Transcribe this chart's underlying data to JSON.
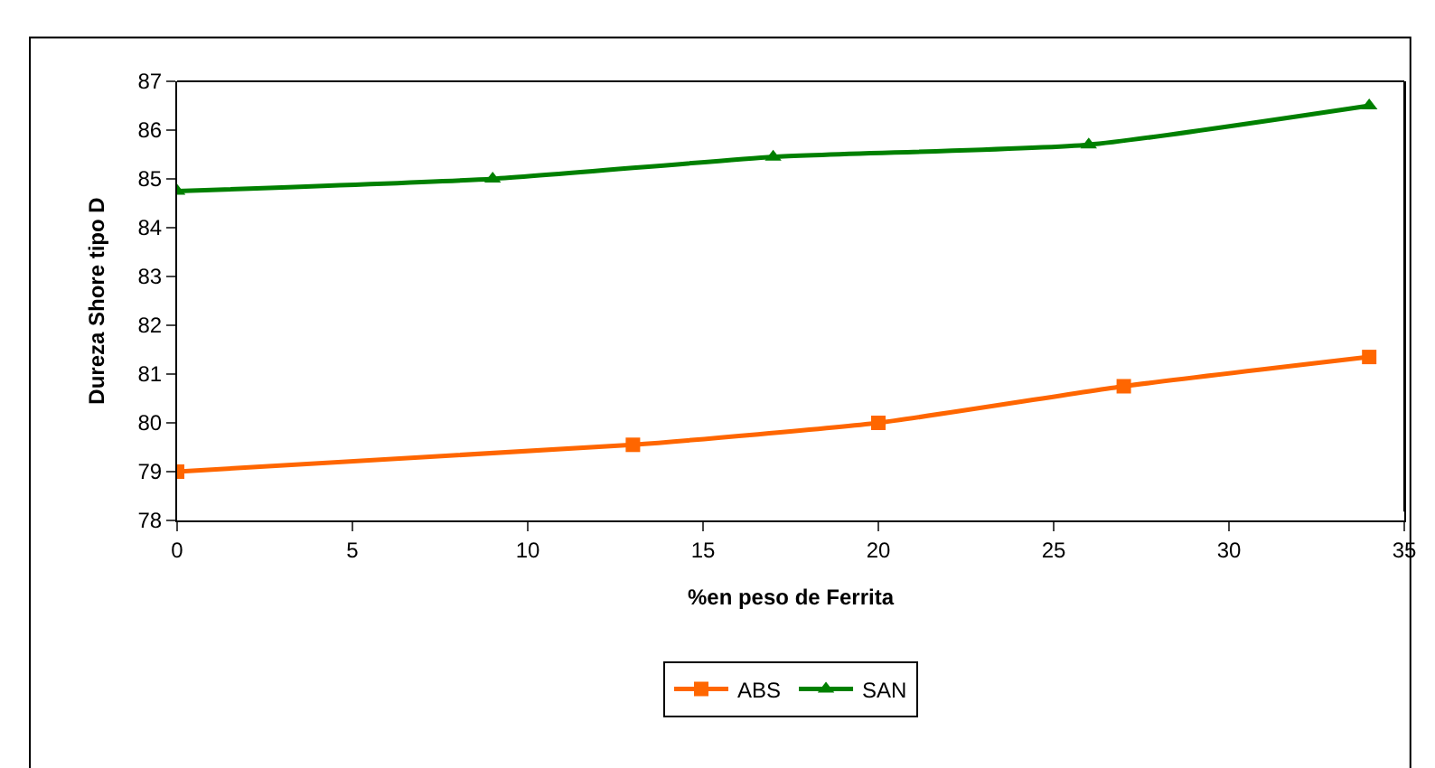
{
  "chart_data": {
    "type": "line",
    "xlabel": "%en peso de Ferrita",
    "ylabel": "Dureza Shore tipo D",
    "series": [
      {
        "name": "ABS",
        "color": "#ff6600",
        "marker": "square",
        "x": [
          0,
          13,
          20,
          27,
          34
        ],
        "values": [
          79.0,
          79.55,
          80.0,
          80.75,
          81.35
        ]
      },
      {
        "name": "SAN",
        "color": "#008000",
        "marker": "triangle",
        "x": [
          0,
          9,
          17,
          26,
          34
        ],
        "values": [
          84.75,
          85.0,
          85.45,
          85.7,
          86.5
        ]
      }
    ],
    "xlim": [
      0,
      35
    ],
    "xticks": [
      0,
      5,
      10,
      15,
      20,
      25,
      30,
      35
    ],
    "ylim": [
      78,
      87
    ],
    "yticks": [
      78,
      79,
      80,
      81,
      82,
      83,
      84,
      85,
      86,
      87
    ],
    "legend": "bottom",
    "line_style": "solid"
  }
}
